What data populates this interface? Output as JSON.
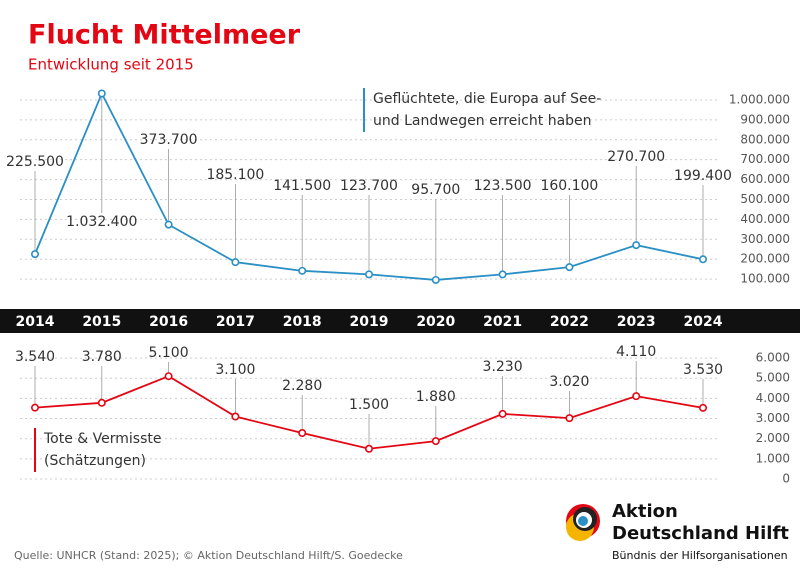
{
  "title": "Flucht Mittelmeer",
  "subtitle": "Entwicklung seit 2015",
  "source": "Quelle: UNHCR (Stand: 2025); © Aktion Deutschland Hilft/S. Goedecke",
  "logo": {
    "name_line1": "Aktion",
    "name_line2": "Deutschland Hilft",
    "tagline": "Bündnis der Hilfsorganisationen"
  },
  "chart_data": [
    {
      "type": "line",
      "categories": [
        "2014",
        "2015",
        "2016",
        "2017",
        "2018",
        "2019",
        "2020",
        "2021",
        "2022",
        "2023",
        "2024"
      ],
      "series": [
        {
          "name": "Geflüchtete, die Europa auf See- und Landwegen erreicht haben",
          "color": "#2a8fc4",
          "values": [
            225500,
            1032400,
            373700,
            185100,
            141500,
            123700,
            95700,
            123500,
            160100,
            270700,
            199400
          ],
          "value_labels": [
            "225.500",
            "1.032.400",
            "373.700",
            "185.100",
            "141.500",
            "123.700",
            "95.700",
            "123.500",
            "160.100",
            "270.700",
            "199.400"
          ]
        }
      ],
      "ylim": [
        0,
        1060000
      ],
      "yticks": [
        {
          "value": 100000,
          "label": "100.000"
        },
        {
          "value": 200000,
          "label": "200.000"
        },
        {
          "value": 300000,
          "label": "300.000"
        },
        {
          "value": 400000,
          "label": "400.000"
        },
        {
          "value": 500000,
          "label": "500.000"
        },
        {
          "value": 600000,
          "label": "600.000"
        },
        {
          "value": 700000,
          "label": "700.000"
        },
        {
          "value": 800000,
          "label": "800.000"
        },
        {
          "value": 900000,
          "label": "900.000"
        },
        {
          "value": 1000000,
          "label": "1.000.000"
        }
      ],
      "grid": true
    },
    {
      "type": "line",
      "series": [
        {
          "name": "Tote & Vermisste (Schätzungen)",
          "color": "#e30613",
          "values": [
            3540,
            3780,
            5100,
            3100,
            2280,
            1500,
            1880,
            3230,
            3020,
            4110,
            3530
          ],
          "value_labels": [
            "3.540",
            "3.780",
            "5.100",
            "3.100",
            "2.280",
            "1.500",
            "1.880",
            "3.230",
            "3.020",
            "4.110",
            "3.530"
          ]
        }
      ],
      "ylim": [
        0,
        6400
      ],
      "yticks": [
        0,
        {
          "value": 1000,
          "label": "1.000"
        },
        {
          "value": 2000,
          "label": "2.000"
        },
        {
          "value": 3000,
          "label": "3.000"
        },
        {
          "value": 4000,
          "label": "4.000"
        },
        {
          "value": 5000,
          "label": "5.000"
        },
        {
          "value": 6000,
          "label": "6.000"
        }
      ],
      "grid": true
    }
  ]
}
